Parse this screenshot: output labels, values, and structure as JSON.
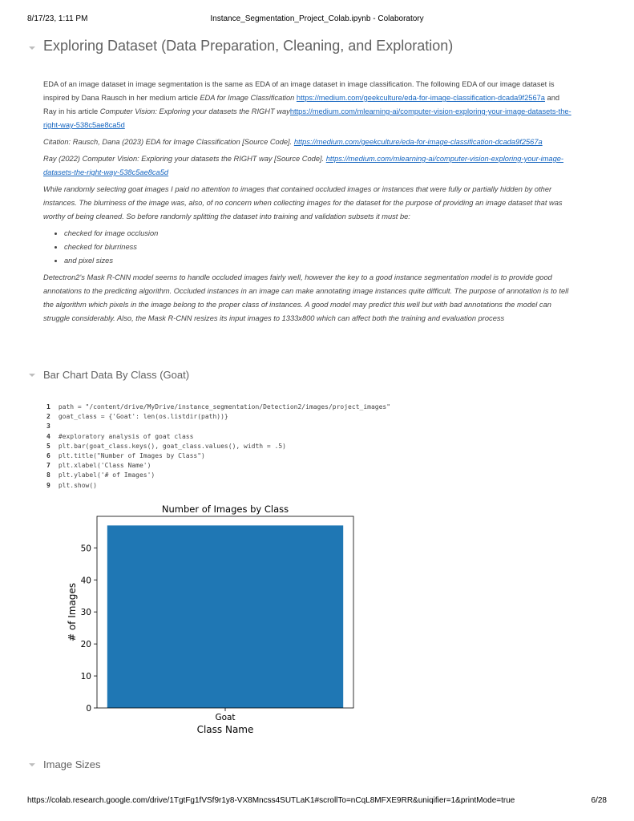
{
  "print_header": {
    "timestamp": "8/17/23, 1:11 PM",
    "document_title": "Instance_Segmentation_Project_Colab.ipynb - Colaboratory"
  },
  "print_footer": {
    "url": "https://colab.research.google.com/drive/1TgtFg1fVSf9r1y8-VX8Mncss4SUTLaK1#scrollTo=nCqL8MFXE9RR&uniqifier=1&printMode=true",
    "page": "6/28"
  },
  "sections": {
    "exploring_dataset": "Exploring Dataset (Data Preparation, Cleaning, and Exploration)",
    "bar_chart": "Bar Chart Data By Class (Goat)",
    "image_sizes": "Image Sizes"
  },
  "markdown": {
    "p1_text1": "EDA of an image dataset in image segmentation is the same as EDA of an image dataset in image classification. The following EDA of our image dataset is inspired by Dana Rausch in her medium article ",
    "p1_article1": "EDA for Image Classification",
    "p1_link1": "https://medium.com/geekculture/eda-for-image-classification-dcada9f2567a",
    "p1_text2": " and Ray in his article ",
    "p1_article2": "Computer Vision: Exploring your datasets the RIGHT way",
    "p1_link2": "https://medium.com/mlearning-ai/computer-vision-exploring-your-image-datasets-the-right-way-538c5ae8ca5d",
    "citation_text": "Citation: Rausch, Dana (2023) EDA for Image Classification [Source Code]. ",
    "citation_link": "https://medium.com/geekculture/eda-for-image-classification-dcada9f2567a",
    "ray_text": "Ray (2022) Computer Vision: Exploring your datasets the RIGHT way [Source Code]. ",
    "ray_link": "https://medium.com/mlearning-ai/computer-vision-exploring-your-image-datasets-the-right-way-538c5ae8ca5d",
    "p3": "While randomly selecting goat images I paid no attention to images that contained occluded images or instances that were fully or partially hidden by other instances. The blurriness of the image was, also, of no concern when collecting images for the dataset for the purpose of providing an image dataset that was worthy of being cleaned. So before randomly splitting the dataset into training and validation subsets it must be:",
    "bullets": [
      "checked for image occlusion",
      "checked for blurriness",
      "and pixel sizes"
    ],
    "p4": "Detectron2's Mask R-CNN model seems to handle occluded images fairly well, however the key to a good instance segmentation model is to provide good annotations to the predicting algorithm. Occluded instances in an image can make annotating image instances quite difficult. The purpose of annotation is to tell the algorithm which pixels in the image belong to the proper class of instances. A good model may predict this well but with bad annotations the model can struggle considerably. Also, the Mask R-CNN resizes its input images to 1333x800 which can affect both the training and evaluation process"
  },
  "code": [
    {
      "n": "1",
      "text": "path = \"/content/drive/MyDrive/instance_segmentation/Detection2/images/project_images\""
    },
    {
      "n": "2",
      "text": "goat_class = {'Goat': len(os.listdir(path))}"
    },
    {
      "n": "3",
      "text": ""
    },
    {
      "n": "4",
      "text": "#exploratory analysis of goat class"
    },
    {
      "n": "5",
      "text": "plt.bar(goat_class.keys(), goat_class.values(), width = .5)"
    },
    {
      "n": "6",
      "text": "plt.title(\"Number of Images by Class\")"
    },
    {
      "n": "7",
      "text": "plt.xlabel('Class Name')"
    },
    {
      "n": "8",
      "text": "plt.ylabel('# of Images')"
    },
    {
      "n": "9",
      "text": "plt.show()"
    }
  ],
  "chart_data": {
    "type": "bar",
    "title": "Number of Images by Class",
    "xlabel": "Class Name",
    "ylabel": "# of Images",
    "categories": [
      "Goat"
    ],
    "values": [
      57
    ],
    "ylim": [
      0,
      59.85
    ],
    "yticks": [
      0,
      10,
      20,
      30,
      40,
      50
    ],
    "bar_color": "#1f77b4",
    "grid": false
  },
  "colors": {
    "link": "#1565c0",
    "heading": "#616161",
    "bar": "#1f77b4"
  }
}
